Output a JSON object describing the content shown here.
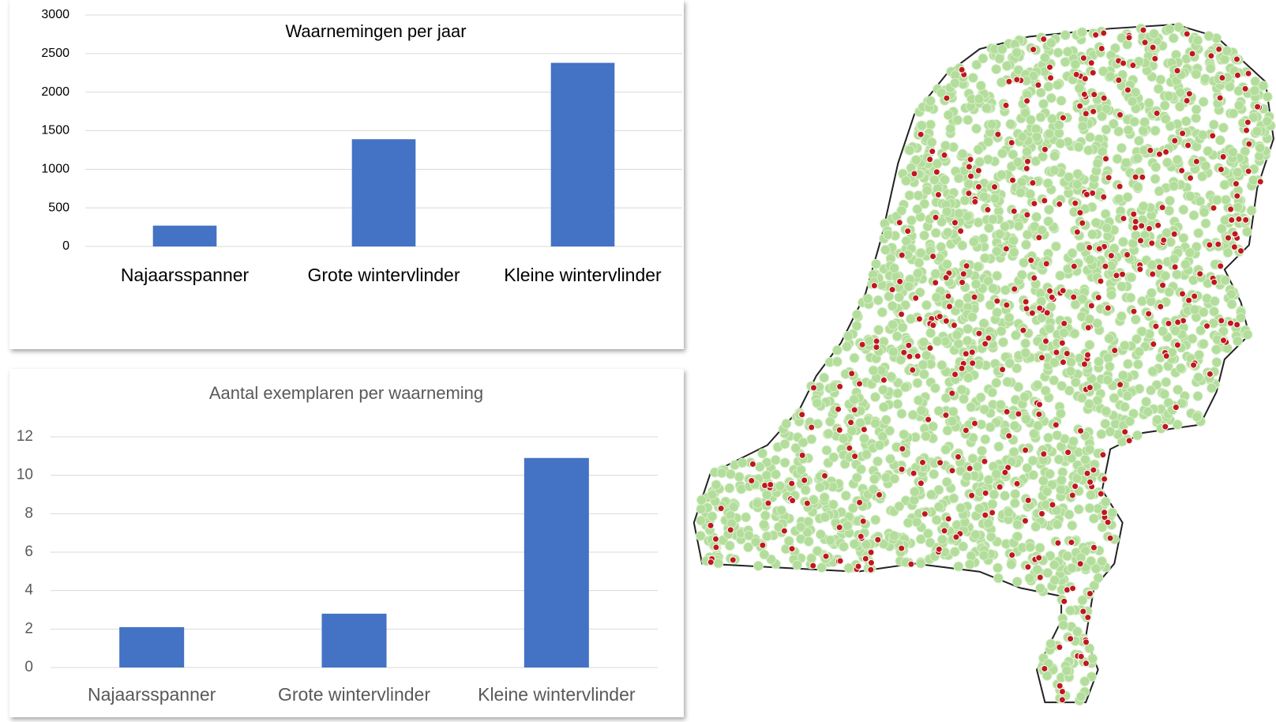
{
  "chart_data": [
    {
      "type": "bar",
      "title": "Waarnemingen per jaar",
      "categories": [
        "Najaarsspanner",
        "Grote wintervlinder",
        "Kleine wintervlinder"
      ],
      "values": [
        270,
        1390,
        2380
      ],
      "color": "#4472c4",
      "ylim": [
        0,
        3000
      ],
      "yticks": [
        0,
        500,
        1000,
        1500,
        2000,
        2500,
        3000
      ],
      "grid": true
    },
    {
      "type": "bar",
      "title": "Aantal exemplaren per waarneming",
      "categories": [
        "Najaarsspanner",
        "Grote wintervlinder",
        "Kleine wintervlinder"
      ],
      "values": [
        2.1,
        2.8,
        10.9
      ],
      "color": "#4472c4",
      "ylim": [
        0,
        12
      ],
      "yticks": [
        0,
        2,
        4,
        6,
        8,
        10,
        12
      ],
      "grid": true
    }
  ]
}
